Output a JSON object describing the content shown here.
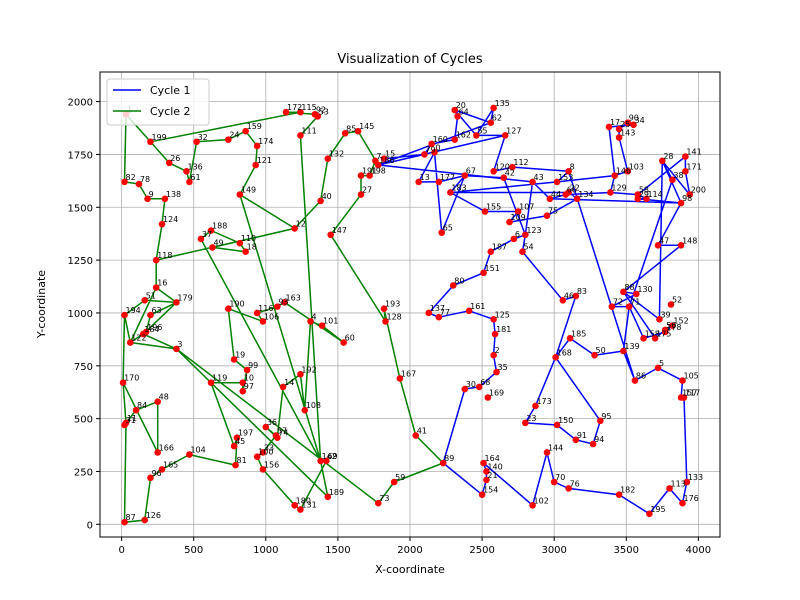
{
  "chart_data": {
    "type": "line",
    "title": "Visualization of Cycles",
    "xlabel": "X-coordinate",
    "ylabel": "Y-coordinate",
    "xlim": [
      -150,
      4150
    ],
    "ylim": [
      -60,
      2140
    ],
    "x_ticks": [
      0,
      500,
      1000,
      1500,
      2000,
      2500,
      3000,
      3500,
      4000
    ],
    "y_ticks": [
      0,
      250,
      500,
      750,
      1000,
      1250,
      1500,
      1750,
      2000
    ],
    "grid": true,
    "legend_position": "top-left",
    "point_color": "#ff0000",
    "points": {
      "0": [
        2170,
        1760
      ],
      "1": [
        30,
        1940
      ],
      "2": [
        2580,
        800
      ],
      "3": [
        380,
        830
      ],
      "4": [
        1310,
        960
      ],
      "5": [
        3720,
        740
      ],
      "6": [
        2720,
        1350
      ],
      "7": [
        1760,
        1720
      ],
      "8": [
        3100,
        1670
      ],
      "9": [
        180,
        1540
      ],
      "10": [
        840,
        670
      ],
      "11": [
        30,
        480
      ],
      "12": [
        1200,
        1400
      ],
      "13": [
        2060,
        1620
      ],
      "14": [
        1120,
        650
      ],
      "15": [
        1820,
        1730
      ],
      "16": [
        240,
        1120
      ],
      "17": [
        3380,
        1880
      ],
      "18": [
        860,
        1290
      ],
      "19": [
        780,
        780
      ],
      "20": [
        2310,
        1960
      ],
      "21": [
        2530,
        210
      ],
      "22": [
        3100,
        1570
      ],
      "23": [
        2800,
        480
      ],
      "24": [
        740,
        1820
      ],
      "25": [
        3450,
        1870
      ],
      "26": [
        330,
        1710
      ],
      "27": [
        1660,
        1560
      ],
      "28": [
        3750,
        1720
      ],
      "29": [
        3580,
        1540
      ],
      "30": [
        2380,
        640
      ],
      "31": [
        20,
        470
      ],
      "32": [
        520,
        1810
      ],
      "33": [
        980,
        340
      ],
      "34": [
        3550,
        1890
      ],
      "35": [
        2600,
        720
      ],
      "36": [
        1000,
        460
      ],
      "37": [
        550,
        1350
      ],
      "38": [
        3820,
        1630
      ],
      "39": [
        3730,
        970
      ],
      "40": [
        1380,
        1530
      ],
      "41": [
        2040,
        420
      ],
      "42": [
        2650,
        1640
      ],
      "43": [
        2850,
        1620
      ],
      "44": [
        2970,
        1540
      ],
      "45": [
        780,
        370
      ],
      "46": [
        3060,
        1060
      ],
      "47": [
        3720,
        1320
      ],
      "48": [
        250,
        580
      ],
      "49": [
        630,
        1310
      ],
      "50": [
        3280,
        800
      ],
      "51": [
        160,
        1060
      ],
      "52": [
        3810,
        1040
      ],
      "53": [
        1360,
        1930
      ],
      "54": [
        2780,
        1290
      ],
      "55": [
        2460,
        1840
      ],
      "56": [
        3770,
        920
      ],
      "57": [
        1070,
        420
      ],
      "58": [
        3580,
        1560
      ],
      "59": [
        1890,
        200
      ],
      "60": [
        1540,
        860
      ],
      "61": [
        470,
        1620
      ],
      "62": [
        2560,
        1900
      ],
      "63": [
        200,
        990
      ],
      "64": [
        2330,
        1930
      ],
      "65": [
        2220,
        1380
      ],
      "66": [
        3080,
        1560
      ],
      "67": [
        2380,
        1650
      ],
      "68": [
        2480,
        650
      ],
      "69": [
        1420,
        300
      ],
      "70": [
        3000,
        200
      ],
      "71": [
        3520,
        1030
      ],
      "72": [
        3400,
        1030
      ],
      "73": [
        1780,
        100
      ],
      "74": [
        1080,
        410
      ],
      "75": [
        2950,
        1460
      ],
      "76": [
        3100,
        170
      ],
      "77": [
        2200,
        980
      ],
      "78": [
        120,
        1610
      ],
      "79": [
        2100,
        1750
      ],
      "80": [
        2300,
        1130
      ],
      "81": [
        790,
        280
      ],
      "82": [
        20,
        1620
      ],
      "83": [
        3150,
        1080
      ],
      "84": [
        100,
        540
      ],
      "85": [
        1550,
        1850
      ],
      "86": [
        3560,
        680
      ],
      "87": [
        20,
        10
      ],
      "88": [
        3480,
        1100
      ],
      "89": [
        2230,
        290
      ],
      "90": [
        3510,
        1900
      ],
      "91": [
        3150,
        400
      ],
      "92": [
        1340,
        1940
      ],
      "93": [
        1080,
        1030
      ],
      "94": [
        3270,
        380
      ],
      "95": [
        3320,
        490
      ],
      "96": [
        200,
        220
      ],
      "97": [
        840,
        630
      ],
      "98": [
        3880,
        1520
      ],
      "99": [
        870,
        730
      ],
      "100": [
        940,
        320
      ],
      "101": [
        1390,
        940
      ],
      "102": [
        2850,
        90
      ],
      "103": [
        3510,
        1670
      ],
      "104": [
        470,
        330
      ],
      "105": [
        3890,
        680
      ],
      "106": [
        980,
        960
      ],
      "107": [
        2750,
        1480
      ],
      "108": [
        1270,
        540
      ],
      "109": [
        2690,
        1430
      ],
      "110": [
        820,
        1330
      ],
      "111": [
        1240,
        1840
      ],
      "112": [
        2710,
        1690
      ],
      "113": [
        3800,
        170
      ],
      "114": [
        3640,
        1540
      ],
      "115": [
        1240,
        1950
      ],
      "116": [
        940,
        1000
      ],
      "117": [
        3900,
        600
      ],
      "118": [
        240,
        1250
      ],
      "119": [
        620,
        670
      ],
      "120": [
        2580,
        1670
      ],
      "121": [
        930,
        1700
      ],
      "122": [
        60,
        860
      ],
      "123": [
        2800,
        1370
      ],
      "124": [
        280,
        1420
      ],
      "125": [
        2580,
        970
      ],
      "126": [
        160,
        20
      ],
      "127": [
        2660,
        1840
      ],
      "128": [
        1830,
        960
      ],
      "129": [
        3390,
        1570
      ],
      "130": [
        3570,
        1090
      ],
      "131": [
        1240,
        70
      ],
      "132": [
        1430,
        1730
      ],
      "133": [
        3920,
        200
      ],
      "134": [
        3160,
        1540
      ],
      "135": [
        2580,
        1970
      ],
      "136": [
        450,
        1670
      ],
      "137": [
        2130,
        1000
      ],
      "138": [
        300,
        1540
      ],
      "139": [
        3480,
        820
      ],
      "140": [
        2530,
        250
      ],
      "141": [
        3910,
        1740
      ],
      "142": [
        1380,
        300
      ],
      "143": [
        3450,
        1830
      ],
      "144": [
        2950,
        340
      ],
      "145": [
        1640,
        1860
      ],
      "146": [
        3420,
        1650
      ],
      "147": [
        1450,
        1370
      ],
      "148": [
        3880,
        1320
      ],
      "149": [
        820,
        1560
      ],
      "150": [
        3020,
        470
      ],
      "151": [
        2510,
        1190
      ],
      "152": [
        3820,
        940
      ],
      "153": [
        3020,
        1620
      ],
      "154": [
        2500,
        140
      ],
      "155": [
        2520,
        1480
      ],
      "156": [
        980,
        260
      ],
      "157": [
        3880,
        600
      ],
      "158": [
        3620,
        880
      ],
      "159": [
        860,
        1860
      ],
      "160": [
        2150,
        1800
      ],
      "161": [
        2410,
        1010
      ],
      "162": [
        2310,
        1820
      ],
      "163": [
        1130,
        1050
      ],
      "164": [
        2510,
        290
      ],
      "165": [
        280,
        260
      ],
      "166": [
        250,
        340
      ],
      "167": [
        1930,
        690
      ],
      "168": [
        3010,
        790
      ],
      "169": [
        2540,
        600
      ],
      "170": [
        10,
        670
      ],
      "171": [
        3910,
        1670
      ],
      "172": [
        1140,
        1950
      ],
      "173": [
        2870,
        560
      ],
      "174": [
        940,
        1790
      ],
      "175": [
        3700,
        880
      ],
      "176": [
        3890,
        100
      ],
      "177": [
        2200,
        1620
      ],
      "178": [
        3770,
        910
      ],
      "179": [
        380,
        1050
      ],
      "180": [
        1200,
        90
      ],
      "181": [
        2590,
        900
      ],
      "182": [
        3450,
        140
      ],
      "183": [
        2280,
        1570
      ],
      "184": [
        150,
        900
      ],
      "185": [
        3110,
        880
      ],
      "186": [
        1780,
        1700
      ],
      "187": [
        2560,
        1290
      ],
      "188": [
        620,
        1390
      ],
      "189": [
        1430,
        130
      ],
      "190": [
        740,
        1020
      ],
      "191": [
        1660,
        1650
      ],
      "192": [
        1240,
        710
      ],
      "193": [
        1820,
        1020
      ],
      "194": [
        20,
        990
      ],
      "195": [
        3660,
        50
      ],
      "196": [
        170,
        910
      ],
      "197": [
        800,
        410
      ],
      "198": [
        1720,
        1650
      ],
      "199": [
        200,
        1810
      ],
      "200": [
        3940,
        1560
      ]
    },
    "series": [
      {
        "name": "Cycle 1",
        "color": "#0000ff",
        "path": [
          15,
          79,
          160,
          162,
          64,
          20,
          55,
          135,
          62,
          186,
          127,
          120,
          112,
          8,
          153,
          183,
          22,
          134,
          75,
          109,
          107,
          155,
          183,
          67,
          177,
          13,
          0,
          65,
          67,
          42,
          123,
          6,
          187,
          151,
          80,
          137,
          77,
          161,
          125,
          181,
          2,
          35,
          68,
          30,
          89,
          154,
          21,
          140,
          164,
          102,
          144,
          70,
          76,
          182,
          195,
          113,
          176,
          133,
          117,
          157,
          105,
          5,
          86,
          139,
          50,
          185,
          168,
          173,
          23,
          150,
          91,
          94,
          95,
          168,
          83,
          46,
          54,
          123,
          43,
          44,
          66,
          129,
          58,
          114,
          29,
          98,
          47,
          148,
          88,
          39,
          28,
          38,
          71,
          72,
          130,
          88,
          175,
          56,
          152,
          178,
          158,
          71,
          139,
          86,
          8,
          153,
          146,
          103,
          143,
          25,
          90,
          34,
          17,
          146,
          129,
          58,
          141,
          171,
          200,
          28,
          98,
          44,
          43,
          186,
          127,
          55,
          135,
          62,
          20,
          64,
          162,
          160,
          79,
          186
        ]
      },
      {
        "name": "Cycle 2",
        "color": "#008000",
        "path": [
          1,
          199,
          26,
          136,
          61,
          32,
          24,
          159,
          174,
          121,
          149,
          142,
          37,
          188,
          110,
          18,
          49,
          12,
          40,
          132,
          85,
          145,
          186,
          7,
          198,
          191,
          27,
          147,
          128,
          193,
          167,
          41,
          89,
          59,
          73,
          3,
          189,
          142,
          69,
          131,
          180,
          156,
          100,
          33,
          57,
          36,
          74,
          14,
          192,
          108,
          4,
          101,
          60,
          163,
          93,
          116,
          106,
          190,
          19,
          99,
          97,
          10,
          119,
          45,
          197,
          81,
          104,
          165,
          96,
          126,
          87,
          11,
          31,
          84,
          48,
          166,
          170,
          194,
          51,
          179,
          63,
          196,
          184,
          3,
          122,
          16,
          118,
          124,
          138,
          9,
          78,
          82,
          1,
          199,
          115,
          172,
          92,
          53,
          111,
          142,
          149,
          12,
          118,
          16,
          179,
          184,
          196,
          122,
          194,
          170,
          11,
          31
        ]
      }
    ],
    "legend": [
      {
        "name": "Cycle 1",
        "color": "#0000ff"
      },
      {
        "name": "Cycle 2",
        "color": "#008000"
      }
    ]
  }
}
